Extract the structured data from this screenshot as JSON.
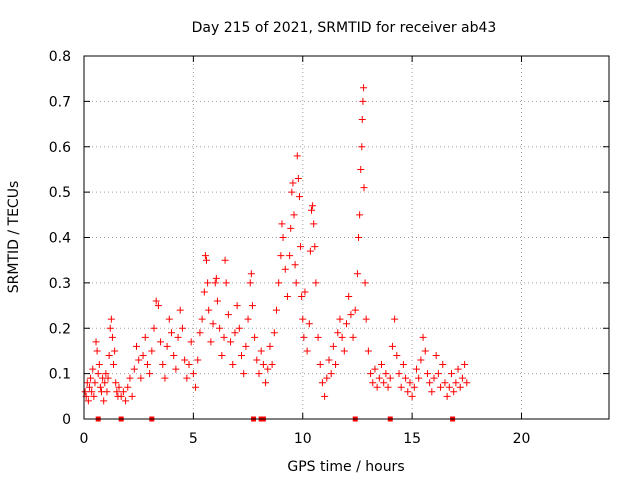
{
  "chart_data": {
    "type": "scatter",
    "title": "Day 215 of 2021, SRMTID for receiver ab43",
    "xlabel": "GPS time / hours",
    "ylabel": "SRMTID / TECUs",
    "xlim": [
      0,
      24
    ],
    "ylim": [
      0,
      0.8
    ],
    "xticks": [
      0,
      5,
      10,
      15,
      20
    ],
    "yticks": [
      0,
      0.1,
      0.2,
      0.3,
      0.4,
      0.5,
      0.6,
      0.7,
      0.8
    ],
    "xtick_labels": [
      "0",
      "5",
      "10",
      "15",
      "20"
    ],
    "ytick_labels": [
      "0",
      "0.1",
      "0.2",
      "0.3",
      "0.4",
      "0.5",
      "0.6",
      "0.7",
      "0.8"
    ],
    "grid": true,
    "marker": "plus",
    "color": "#ff0000",
    "series": [
      {
        "name": "SRMTID",
        "points": [
          [
            0.05,
            0.06
          ],
          [
            0.1,
            0.05
          ],
          [
            0.15,
            0.08
          ],
          [
            0.2,
            0.04
          ],
          [
            0.25,
            0.07
          ],
          [
            0.3,
            0.09
          ],
          [
            0.35,
            0.06
          ],
          [
            0.4,
            0.11
          ],
          [
            0.45,
            0.05
          ],
          [
            0.5,
            0.08
          ],
          [
            0.55,
            0.17
          ],
          [
            0.6,
            0.15
          ],
          [
            0.65,
            0.1
          ],
          [
            0.7,
            0.12
          ],
          [
            0.75,
            0.07
          ],
          [
            0.8,
            0.06
          ],
          [
            0.85,
            0.09
          ],
          [
            0.9,
            0.04
          ],
          [
            0.95,
            0.08
          ],
          [
            1.0,
            0.1
          ],
          [
            1.05,
            0.06
          ],
          [
            1.1,
            0.09
          ],
          [
            1.15,
            0.14
          ],
          [
            1.2,
            0.2
          ],
          [
            1.25,
            0.22
          ],
          [
            1.3,
            0.18
          ],
          [
            1.35,
            0.12
          ],
          [
            1.4,
            0.15
          ],
          [
            1.45,
            0.08
          ],
          [
            1.5,
            0.06
          ],
          [
            1.55,
            0.05
          ],
          [
            1.6,
            0.07
          ],
          [
            1.7,
            0.05
          ],
          [
            1.8,
            0.06
          ],
          [
            1.9,
            0.04
          ],
          [
            2.0,
            0.07
          ],
          [
            2.1,
            0.09
          ],
          [
            2.2,
            0.05
          ],
          [
            2.3,
            0.11
          ],
          [
            2.4,
            0.16
          ],
          [
            2.5,
            0.13
          ],
          [
            2.6,
            0.09
          ],
          [
            2.7,
            0.14
          ],
          [
            2.8,
            0.18
          ],
          [
            2.9,
            0.12
          ],
          [
            3.0,
            0.1
          ],
          [
            3.1,
            0.15
          ],
          [
            3.2,
            0.2
          ],
          [
            3.3,
            0.26
          ],
          [
            3.4,
            0.25
          ],
          [
            3.5,
            0.17
          ],
          [
            3.6,
            0.12
          ],
          [
            3.7,
            0.09
          ],
          [
            3.8,
            0.16
          ],
          [
            3.9,
            0.22
          ],
          [
            4.0,
            0.19
          ],
          [
            4.1,
            0.14
          ],
          [
            4.2,
            0.11
          ],
          [
            4.3,
            0.18
          ],
          [
            4.4,
            0.24
          ],
          [
            4.5,
            0.2
          ],
          [
            4.6,
            0.13
          ],
          [
            4.7,
            0.09
          ],
          [
            4.8,
            0.12
          ],
          [
            4.9,
            0.17
          ],
          [
            5.0,
            0.1
          ],
          [
            5.1,
            0.07
          ],
          [
            5.2,
            0.13
          ],
          [
            5.3,
            0.19
          ],
          [
            5.4,
            0.22
          ],
          [
            5.5,
            0.28
          ],
          [
            5.55,
            0.36
          ],
          [
            5.6,
            0.35
          ],
          [
            5.65,
            0.3
          ],
          [
            5.7,
            0.24
          ],
          [
            5.8,
            0.17
          ],
          [
            5.9,
            0.21
          ],
          [
            6.0,
            0.3
          ],
          [
            6.05,
            0.31
          ],
          [
            6.1,
            0.26
          ],
          [
            6.2,
            0.2
          ],
          [
            6.3,
            0.14
          ],
          [
            6.4,
            0.18
          ],
          [
            6.45,
            0.35
          ],
          [
            6.5,
            0.3
          ],
          [
            6.6,
            0.23
          ],
          [
            6.7,
            0.17
          ],
          [
            6.8,
            0.12
          ],
          [
            6.9,
            0.19
          ],
          [
            7.0,
            0.25
          ],
          [
            7.1,
            0.2
          ],
          [
            7.2,
            0.14
          ],
          [
            7.3,
            0.1
          ],
          [
            7.4,
            0.16
          ],
          [
            7.5,
            0.22
          ],
          [
            7.6,
            0.3
          ],
          [
            7.65,
            0.32
          ],
          [
            7.7,
            0.25
          ],
          [
            7.8,
            0.18
          ],
          [
            7.9,
            0.13
          ],
          [
            8.0,
            0.1
          ],
          [
            8.1,
            0.15
          ],
          [
            8.2,
            0.12
          ],
          [
            8.3,
            0.08
          ],
          [
            8.4,
            0.11
          ],
          [
            8.5,
            0.16
          ],
          [
            8.6,
            0.12
          ],
          [
            8.7,
            0.19
          ],
          [
            8.8,
            0.24
          ],
          [
            8.9,
            0.3
          ],
          [
            9.0,
            0.36
          ],
          [
            9.05,
            0.43
          ],
          [
            9.1,
            0.4
          ],
          [
            9.2,
            0.33
          ],
          [
            9.3,
            0.27
          ],
          [
            9.4,
            0.36
          ],
          [
            9.45,
            0.42
          ],
          [
            9.5,
            0.5
          ],
          [
            9.55,
            0.52
          ],
          [
            9.6,
            0.45
          ],
          [
            9.65,
            0.34
          ],
          [
            9.7,
            0.3
          ],
          [
            9.75,
            0.58
          ],
          [
            9.8,
            0.53
          ],
          [
            9.85,
            0.49
          ],
          [
            9.9,
            0.38
          ],
          [
            9.95,
            0.27
          ],
          [
            10.0,
            0.22
          ],
          [
            10.05,
            0.18
          ],
          [
            10.1,
            0.28
          ],
          [
            10.2,
            0.15
          ],
          [
            10.3,
            0.21
          ],
          [
            10.35,
            0.37
          ],
          [
            10.4,
            0.46
          ],
          [
            10.45,
            0.47
          ],
          [
            10.5,
            0.43
          ],
          [
            10.55,
            0.38
          ],
          [
            10.6,
            0.3
          ],
          [
            10.7,
            0.18
          ],
          [
            10.8,
            0.12
          ],
          [
            10.9,
            0.08
          ],
          [
            11.0,
            0.05
          ],
          [
            11.1,
            0.09
          ],
          [
            11.2,
            0.13
          ],
          [
            11.3,
            0.1
          ],
          [
            11.4,
            0.16
          ],
          [
            11.5,
            0.12
          ],
          [
            11.6,
            0.19
          ],
          [
            11.7,
            0.22
          ],
          [
            11.8,
            0.18
          ],
          [
            11.9,
            0.15
          ],
          [
            12.0,
            0.21
          ],
          [
            12.1,
            0.27
          ],
          [
            12.2,
            0.23
          ],
          [
            12.3,
            0.18
          ],
          [
            12.4,
            0.24
          ],
          [
            12.5,
            0.32
          ],
          [
            12.55,
            0.4
          ],
          [
            12.6,
            0.45
          ],
          [
            12.65,
            0.55
          ],
          [
            12.7,
            0.6
          ],
          [
            12.72,
            0.66
          ],
          [
            12.75,
            0.7
          ],
          [
            12.78,
            0.73
          ],
          [
            12.8,
            0.51
          ],
          [
            12.85,
            0.3
          ],
          [
            12.9,
            0.22
          ],
          [
            13.0,
            0.15
          ],
          [
            13.1,
            0.1
          ],
          [
            13.2,
            0.08
          ],
          [
            13.3,
            0.11
          ],
          [
            13.4,
            0.07
          ],
          [
            13.5,
            0.09
          ],
          [
            13.6,
            0.12
          ],
          [
            13.7,
            0.08
          ],
          [
            13.8,
            0.1
          ],
          [
            13.9,
            0.07
          ],
          [
            14.0,
            0.09
          ],
          [
            14.1,
            0.16
          ],
          [
            14.2,
            0.22
          ],
          [
            14.3,
            0.14
          ],
          [
            14.4,
            0.1
          ],
          [
            14.5,
            0.07
          ],
          [
            14.6,
            0.12
          ],
          [
            14.7,
            0.09
          ],
          [
            14.8,
            0.06
          ],
          [
            14.9,
            0.08
          ],
          [
            15.0,
            0.05
          ],
          [
            15.1,
            0.07
          ],
          [
            15.2,
            0.11
          ],
          [
            15.3,
            0.09
          ],
          [
            15.4,
            0.13
          ],
          [
            15.5,
            0.18
          ],
          [
            15.6,
            0.15
          ],
          [
            15.7,
            0.1
          ],
          [
            15.8,
            0.08
          ],
          [
            15.9,
            0.06
          ],
          [
            16.0,
            0.09
          ],
          [
            16.1,
            0.14
          ],
          [
            16.2,
            0.1
          ],
          [
            16.3,
            0.07
          ],
          [
            16.4,
            0.12
          ],
          [
            16.5,
            0.08
          ],
          [
            16.6,
            0.05
          ],
          [
            16.7,
            0.07
          ],
          [
            16.8,
            0.1
          ],
          [
            16.9,
            0.06
          ],
          [
            17.0,
            0.08
          ],
          [
            17.1,
            0.11
          ],
          [
            17.2,
            0.07
          ],
          [
            17.3,
            0.09
          ],
          [
            17.4,
            0.12
          ],
          [
            17.5,
            0.08
          ]
        ]
      }
    ],
    "gap_markers": [
      0.65,
      1.7,
      3.1,
      7.75,
      8.1,
      8.2,
      12.4,
      14.0,
      16.85
    ]
  }
}
